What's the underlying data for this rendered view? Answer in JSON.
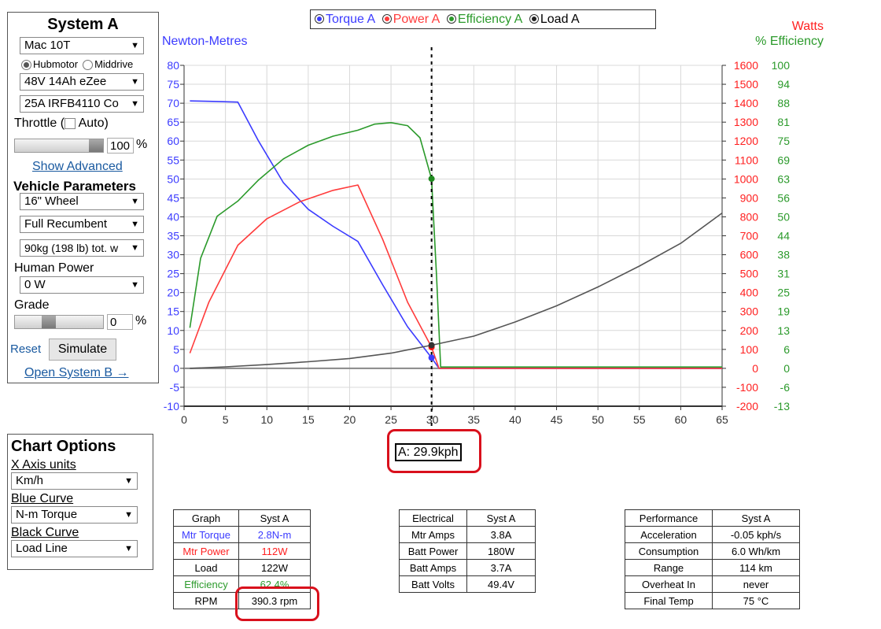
{
  "system": {
    "title": "System A",
    "motor": "Mac 10T",
    "hubmotor_label": "Hubmotor",
    "middrive_label": "Middrive",
    "battery": "48V 14Ah eZee",
    "controller": "25A IRFB4110 Co",
    "throttle_label": "Throttle (",
    "auto_label": "Auto)",
    "throttle_value": "100",
    "throttle_unit": "%",
    "throttle_level_pct": 100,
    "show_advanced": "Show Advanced",
    "vehicle_title": "Vehicle Parameters",
    "wheel": "16\"  Wheel",
    "position": "Full Recumbent",
    "weight": "90kg (198 lb) tot. w",
    "human_power_label": "Human Power",
    "human_power": "0 W",
    "grade_label": "Grade",
    "grade_value": "0",
    "grade_unit": "%",
    "reset": "Reset",
    "simulate": "Simulate",
    "open_b": "Open System B →"
  },
  "chart_options": {
    "title": "Chart Options",
    "x_units_label": "X Axis units",
    "x_units": "Km/h",
    "blue_label": "Blue Curve",
    "blue": "N-m Torque",
    "black_label": "Black Curve",
    "black": "Load Line"
  },
  "legend": {
    "torque": "Torque A",
    "power": "Power A",
    "efficiency": "Efficiency A",
    "load": "Load A"
  },
  "colors": {
    "torque": "#3b3bff",
    "power": "#ff3b3b",
    "efficiency": "#2b9a2b",
    "load": "#555555"
  },
  "axis_labels": {
    "left": "Newton-Metres",
    "watts": "Watts",
    "efficiency": "% Efficiency"
  },
  "cursor_readout": "A: 29.9kph",
  "chart_data": {
    "type": "line",
    "xlim": [
      0,
      65
    ],
    "x_ticks": [
      0,
      5,
      10,
      15,
      20,
      25,
      30,
      35,
      40,
      45,
      50,
      55,
      60,
      65
    ],
    "ylim_left": [
      -10,
      80
    ],
    "y_ticks_left": [
      80,
      75,
      70,
      65,
      60,
      55,
      50,
      45,
      40,
      35,
      30,
      25,
      20,
      15,
      10,
      5,
      0,
      -5,
      -10
    ],
    "watts_ticks": [
      1600,
      1500,
      1400,
      1300,
      1200,
      1100,
      1000,
      900,
      800,
      700,
      600,
      500,
      400,
      300,
      200,
      100,
      0,
      -100,
      -200
    ],
    "eff_ticks": [
      100,
      94,
      88,
      81,
      75,
      69,
      63,
      56,
      50,
      44,
      38,
      31,
      25,
      19,
      13,
      6,
      0,
      -6,
      -13
    ],
    "cursor_x": 29.9,
    "series": [
      {
        "name": "Torque A",
        "axis": "left",
        "x": [
          0.7,
          3,
          6.5,
          9,
          12,
          15,
          18,
          21,
          24,
          27,
          29.9,
          30.8,
          65
        ],
        "y": [
          70.6,
          70.5,
          70.3,
          60,
          49,
          42,
          37.5,
          33.5,
          22,
          11,
          2.8,
          0,
          0
        ]
      },
      {
        "name": "Power A",
        "axis": "watts",
        "x": [
          0.7,
          3,
          6.5,
          10,
          14,
          18,
          21,
          24,
          27,
          29.9,
          30.8,
          65
        ],
        "y": [
          80,
          350,
          650,
          790,
          880,
          940,
          968,
          680,
          350,
          112,
          0,
          0
        ]
      },
      {
        "name": "Efficiency A",
        "axis": "eff",
        "x": [
          0.7,
          2,
          4,
          6.5,
          9,
          12,
          15,
          18,
          21,
          23,
          25,
          27,
          28.5,
          29.9,
          30.5,
          31,
          65
        ],
        "y": [
          13,
          36,
          50,
          55,
          62,
          69,
          73.5,
          76.5,
          78.5,
          80.5,
          81,
          80,
          76,
          62.4,
          30,
          0,
          0
        ]
      },
      {
        "name": "Load A",
        "axis": "watts",
        "x": [
          0.7,
          5,
          10,
          15,
          20,
          25,
          29.9,
          35,
          40,
          45,
          50,
          55,
          60,
          65
        ],
        "y": [
          0,
          8,
          20,
          35,
          52,
          80,
          122,
          170,
          245,
          330,
          430,
          540,
          660,
          820
        ]
      }
    ]
  },
  "graph_table": {
    "headers": [
      "Graph",
      "Syst A"
    ],
    "rows": [
      {
        "label": "Mtr Torque",
        "value": "2.8N-m",
        "color": "#3b3bff"
      },
      {
        "label": "Mtr Power",
        "value": "112W",
        "color": "#ff2020"
      },
      {
        "label": "Load",
        "value": "122W",
        "color": "#000000"
      },
      {
        "label": "Efficiency",
        "value": "62.4%",
        "color": "#2b9a2b"
      },
      {
        "label": "RPM",
        "value": "390.3 rpm",
        "color": "#000000"
      }
    ]
  },
  "electrical_table": {
    "headers": [
      "Electrical",
      "Syst A"
    ],
    "rows": [
      {
        "label": "Mtr Amps",
        "value": "3.8A"
      },
      {
        "label": "Batt Power",
        "value": "180W"
      },
      {
        "label": "Batt Amps",
        "value": "3.7A"
      },
      {
        "label": "Batt Volts",
        "value": "49.4V"
      }
    ]
  },
  "performance_table": {
    "headers": [
      "Performance",
      "Syst A"
    ],
    "rows": [
      {
        "label": "Acceleration",
        "value": "-0.05 kph/s"
      },
      {
        "label": "Consumption",
        "value": "6.0 Wh/km"
      },
      {
        "label": "Range",
        "value": "114 km"
      },
      {
        "label": "Overheat In",
        "value": "never"
      },
      {
        "label": "Final Temp",
        "value": "75 °C"
      }
    ]
  }
}
